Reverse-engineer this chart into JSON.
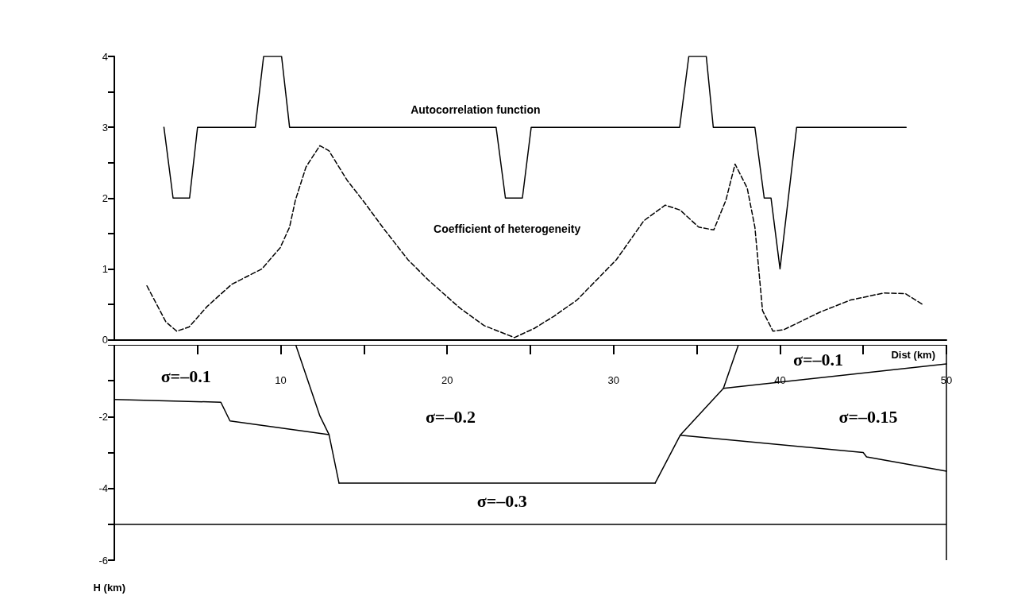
{
  "chart_data": [
    {
      "type": "line",
      "xlim": [
        0,
        50
      ],
      "ylim": [
        0,
        4
      ],
      "yticks": [
        0,
        {
          "value": 0.5,
          "label": null
        },
        1,
        {
          "value": 1.5,
          "label": null
        },
        2,
        {
          "value": 2.5,
          "label": null
        },
        3,
        {
          "value": 3.5,
          "label": null
        },
        4
      ],
      "tick_labels": "y",
      "grid": false,
      "marker": "none",
      "series": [
        {
          "color": "#000000",
          "line_style": "solid",
          "x": [
            2.98,
            3.53,
            4.52,
            5.0,
            8.47,
            8.97,
            10.05,
            10.53,
            22.94,
            23.5,
            24.52,
            25.05,
            33.97,
            34.52,
            35.57,
            35.99,
            38.49,
            39.05,
            39.46,
            40.0,
            41.0,
            47.58
          ],
          "values": [
            3,
            2,
            2,
            3,
            3,
            4,
            4,
            3,
            3,
            2,
            2,
            3,
            3,
            4,
            4,
            3,
            3,
            2,
            2,
            1,
            3,
            3
          ]
        },
        {
          "color": "#000000",
          "line_style": "dashed",
          "x": [
            1.96,
            3.1,
            3.75,
            4.49,
            5.58,
            7.04,
            8.87,
            9.97,
            10.53,
            10.88,
            11.52,
            12.35,
            12.89,
            13.99,
            14.99,
            16.18,
            17.64,
            18.92,
            20.75,
            22.21,
            24.04,
            25.24,
            26.41,
            27.8,
            30.17,
            31.82,
            33.1,
            34.0,
            35.11,
            36.02,
            36.75,
            37.3,
            38.03,
            38.49,
            38.95,
            39.58,
            40.22,
            42.41,
            44.24,
            46.26,
            47.54,
            48.55
          ],
          "values": [
            0.76,
            0.25,
            0.12,
            0.18,
            0.47,
            0.78,
            1.0,
            1.3,
            1.59,
            1.97,
            2.44,
            2.74,
            2.67,
            2.25,
            1.95,
            1.57,
            1.13,
            0.83,
            0.45,
            0.2,
            0.03,
            0.16,
            0.33,
            0.56,
            1.13,
            1.68,
            1.9,
            1.83,
            1.59,
            1.55,
            1.97,
            2.48,
            2.14,
            1.59,
            0.41,
            0.12,
            0.14,
            0.39,
            0.56,
            0.66,
            0.65,
            0.5
          ]
        }
      ],
      "annotations": [
        "Autocorrelation function",
        "Coefficient of heterogeneity"
      ]
    },
    {
      "type": "line",
      "xlabel": "Dist (km)",
      "ylabel": "H (km)",
      "xlim": [
        0,
        50
      ],
      "xticks": [
        {
          "value": 0,
          "label": null
        },
        {
          "value": 5,
          "label": null
        },
        10,
        {
          "value": 15,
          "label": null
        },
        20,
        {
          "value": 25,
          "label": null
        },
        30,
        {
          "value": 35,
          "label": null
        },
        40,
        {
          "value": 45,
          "label": null
        },
        50
      ],
      "ylim": [
        -6,
        0
      ],
      "yticks": [
        {
          "value": 0,
          "label": null
        },
        {
          "value": -1,
          "label": null
        },
        -2,
        {
          "value": -3,
          "label": null
        },
        -4,
        {
          "value": -5,
          "label": null
        },
        -6
      ],
      "grid": false,
      "marker": "none",
      "series": [
        {
          "color": "#000000",
          "x": [
            0,
            6.4,
            6.95,
            12.9
          ],
          "values": [
            -1.52,
            -1.6,
            -2.12,
            -2.5
          ]
        },
        {
          "color": "#000000",
          "x": [
            10.9,
            12.35,
            12.9,
            13.5
          ],
          "values": [
            0,
            -1.98,
            -2.5,
            -3.85
          ]
        },
        {
          "color": "#000000",
          "x": [
            13.5,
            32.5
          ],
          "values": [
            -3.85,
            -3.85
          ]
        },
        {
          "color": "#000000",
          "x": [
            32.5,
            34.0,
            36.6,
            37.5
          ],
          "values": [
            -3.85,
            -2.52,
            -1.21,
            0
          ]
        },
        {
          "color": "#000000",
          "x": [
            36.6,
            50
          ],
          "values": [
            -1.21,
            -0.53
          ]
        },
        {
          "color": "#000000",
          "x": [
            34.0,
            45.0,
            45.2,
            50
          ],
          "values": [
            -2.52,
            -3.0,
            -3.12,
            -3.52
          ]
        }
      ],
      "ref_lines": [
        {
          "axis": "y",
          "value": -5,
          "color": "#000000"
        },
        {
          "axis": "x",
          "value": 50,
          "color": "#000000"
        }
      ],
      "annotations": [
        "σ=–0.1",
        "σ=–0.2",
        "σ=–0.3",
        "σ=–0.1",
        "σ=–0.15"
      ]
    }
  ]
}
